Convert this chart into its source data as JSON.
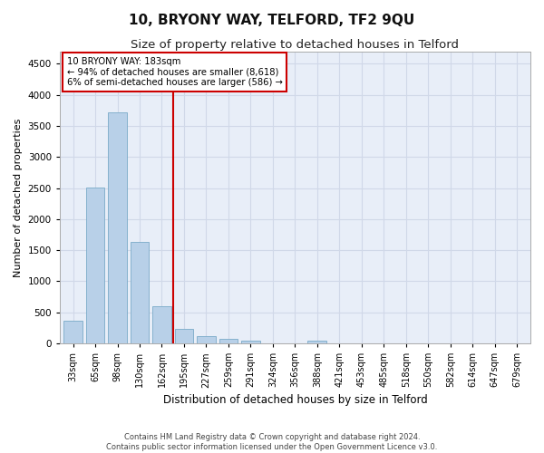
{
  "title": "10, BRYONY WAY, TELFORD, TF2 9QU",
  "subtitle": "Size of property relative to detached houses in Telford",
  "xlabel": "Distribution of detached houses by size in Telford",
  "ylabel": "Number of detached properties",
  "footer1": "Contains HM Land Registry data © Crown copyright and database right 2024.",
  "footer2": "Contains public sector information licensed under the Open Government Licence v3.0.",
  "categories": [
    "33sqm",
    "65sqm",
    "98sqm",
    "130sqm",
    "162sqm",
    "195sqm",
    "227sqm",
    "259sqm",
    "291sqm",
    "324sqm",
    "356sqm",
    "388sqm",
    "421sqm",
    "453sqm",
    "485sqm",
    "518sqm",
    "550sqm",
    "582sqm",
    "614sqm",
    "647sqm",
    "679sqm"
  ],
  "values": [
    360,
    2510,
    3720,
    1630,
    595,
    230,
    110,
    75,
    50,
    0,
    0,
    50,
    0,
    0,
    0,
    0,
    0,
    0,
    0,
    0,
    0
  ],
  "bar_color": "#b8d0e8",
  "bar_edge_color": "#7aaac8",
  "vline_x": 4.5,
  "vline_color": "#cc0000",
  "annotation_line1": "10 BRYONY WAY: 183sqm",
  "annotation_line2": "← 94% of detached houses are smaller (8,618)",
  "annotation_line3": "6% of semi-detached houses are larger (586) →",
  "annotation_box_color": "#ffffff",
  "annotation_box_edge": "#cc0000",
  "ylim": [
    0,
    4700
  ],
  "yticks": [
    0,
    500,
    1000,
    1500,
    2000,
    2500,
    3000,
    3500,
    4000,
    4500
  ],
  "grid_color": "#d0d8e8",
  "bg_color": "#e8eef8",
  "fig_bg_color": "#ffffff",
  "title_fontsize": 11,
  "subtitle_fontsize": 9.5
}
